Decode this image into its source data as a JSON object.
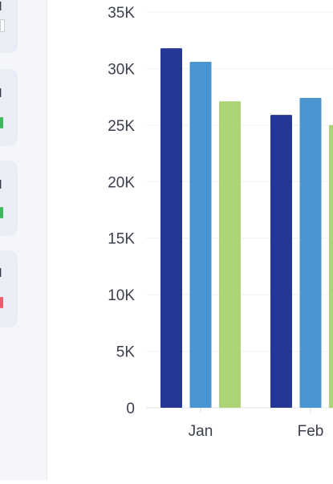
{
  "sidebar": {
    "cards": [
      {
        "label": "d",
        "marker_color": "#ffffff"
      },
      {
        "label": "d",
        "marker_color": "#3cb85a"
      },
      {
        "label": "d",
        "marker_color": "#3cb85a"
      },
      {
        "label": "d",
        "marker_color": "#e85d6a"
      }
    ]
  },
  "colors": {
    "series_1": "#253796",
    "series_2": "#4995d2",
    "series_3": "#acd374",
    "axis_text": "#3a3f4b",
    "gridline": "#eef0f4"
  },
  "chart_data": {
    "type": "bar",
    "categories": [
      "Jan",
      "Feb"
    ],
    "series": [
      {
        "values": [
          31800,
          25900
        ]
      },
      {
        "values": [
          30600,
          27400
        ]
      },
      {
        "values": [
          27100,
          25000
        ]
      }
    ],
    "ylim": [
      0,
      35000
    ],
    "yticks": [
      0,
      5000,
      10000,
      15000,
      20000,
      25000,
      30000,
      35000
    ],
    "ytick_labels": [
      "0",
      "5K",
      "10K",
      "15K",
      "20K",
      "25K",
      "30K",
      "35K"
    ],
    "grid": true,
    "xlabel": "",
    "ylabel": "",
    "title": ""
  }
}
